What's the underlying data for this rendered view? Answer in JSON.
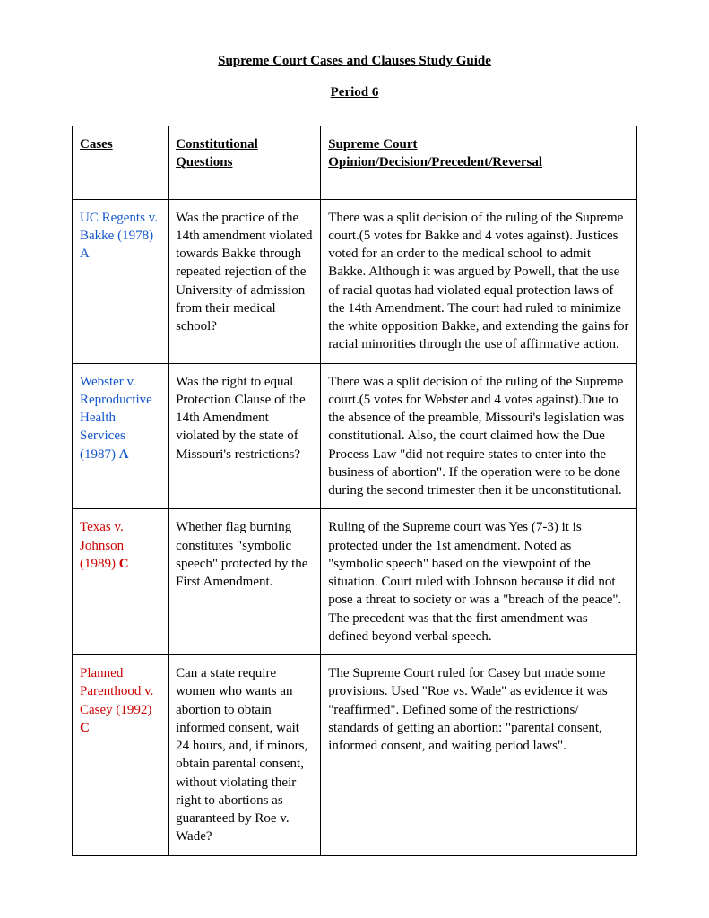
{
  "title": "Supreme Court Cases and Clauses Study Guide",
  "subtitle": "Period 6",
  "headers": {
    "col1": "Cases",
    "col2": "Constitutional Questions",
    "col3": "Supreme Court Opinion/Decision/Precedent/Reversal"
  },
  "rows": [
    {
      "case_name": "UC Regents v. Bakke (1978)",
      "case_letter": "A",
      "case_color": "blue",
      "question": "Was the practice of the 14th amendment violated towards Bakke through repeated rejection of the University of admission from their medical school?",
      "opinion": "There was a split decision of the ruling of the Supreme court.(5 votes for Bakke and 4 votes against). Justices voted for an order to the medical school to admit Bakke. Although it was argued by Powell, that the use of racial quotas had violated equal protection laws of the 14th Amendment. The court had ruled to minimize the white opposition Bakke, and extending the gains for racial minorities through the use of affirmative action."
    },
    {
      "case_name": "Webster v. Reproductive Health Services (1987)",
      "case_letter": "A",
      "case_color": "blue",
      "letter_bold": true,
      "question": "Was the right to equal Protection Clause of the 14th Amendment violated by the state of Missouri's restrictions?",
      "opinion": "There was a split decision of the ruling of the Supreme court.(5 votes for Webster and 4 votes against).Due to the absence of the preamble, Missouri's legislation was constitutional. Also, the court claimed how the Due Process Law \"did not require states to enter into the business of abortion\". If the operation were to be done during the second trimester then it be unconstitutional."
    },
    {
      "case_name": "Texas v. Johnson (1989)",
      "case_letter": "C",
      "case_color": "red",
      "question": "Whether flag burning constitutes \"symbolic speech\" protected by the First Amendment.",
      "opinion": "Ruling of the Supreme court was Yes (7-3) it is protected under the 1st amendment. Noted as \"symbolic speech\" based on the viewpoint of the situation. Court ruled with Johnson because it did not pose a threat to society or was a \"breach of the peace\". The precedent was that the first amendment was defined beyond verbal speech."
    },
    {
      "case_name": "Planned Parenthood v. Casey (1992)",
      "case_letter": "C",
      "case_color": "red",
      "question": "Can a state require women who wants an abortion to obtain informed consent, wait 24 hours, and, if minors, obtain parental consent, without violating their right to abortions as guaranteed by Roe v. Wade?",
      "opinion": "The Supreme Court ruled for Casey but made some provisions. Used \"Roe vs. Wade\" as evidence it was \"reaffirmed\". Defined some of the restrictions/ standards of getting an abortion: \"parental consent, informed consent, and waiting period laws\"."
    }
  ]
}
